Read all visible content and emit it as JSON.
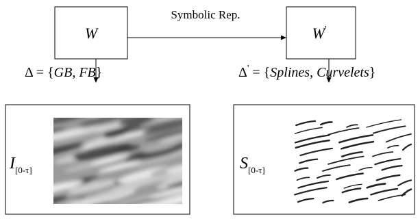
{
  "edge": {
    "label": "Symbolic Rep."
  },
  "nodes": [
    {
      "label": "W"
    },
    {
      "label": "W",
      "prime": "'"
    }
  ],
  "operators": [
    {
      "parts": [
        "Δ = {",
        "GB",
        ", ",
        "FB",
        "}"
      ]
    },
    {
      "parts": [
        "Δ",
        "'",
        " = {",
        "Splines",
        ", ",
        "Curvelets",
        "}"
      ]
    }
  ],
  "panels": [
    {
      "label": "I",
      "subscript": "[0-τ]"
    },
    {
      "label": "S",
      "subscript": "[0-τ]"
    }
  ]
}
